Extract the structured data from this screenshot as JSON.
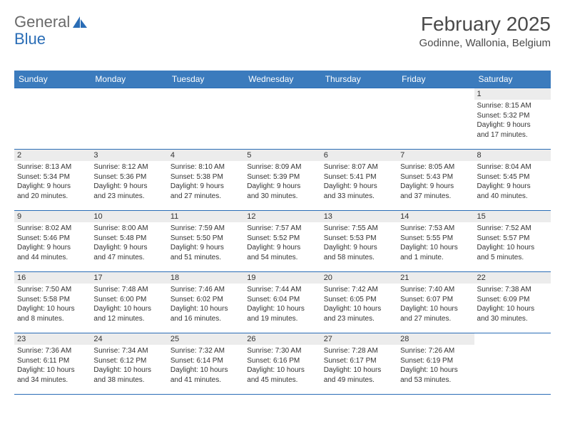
{
  "logo": {
    "word1": "General",
    "word2": "Blue"
  },
  "title": {
    "month": "February 2025",
    "location": "Godinne, Wallonia, Belgium"
  },
  "colors": {
    "header_bg": "#3b7bbd",
    "header_text": "#ffffff",
    "border": "#2a6db6",
    "daynum_bg": "#ececec",
    "text": "#333333",
    "logo_gray": "#6a6a6a",
    "logo_blue": "#2a6db6"
  },
  "weekdays": [
    "Sunday",
    "Monday",
    "Tuesday",
    "Wednesday",
    "Thursday",
    "Friday",
    "Saturday"
  ],
  "weeks": [
    [
      null,
      null,
      null,
      null,
      null,
      null,
      {
        "n": "1",
        "sunrise": "8:15 AM",
        "sunset": "5:32 PM",
        "dl1": "Daylight: 9 hours",
        "dl2": "and 17 minutes."
      }
    ],
    [
      {
        "n": "2",
        "sunrise": "8:13 AM",
        "sunset": "5:34 PM",
        "dl1": "Daylight: 9 hours",
        "dl2": "and 20 minutes."
      },
      {
        "n": "3",
        "sunrise": "8:12 AM",
        "sunset": "5:36 PM",
        "dl1": "Daylight: 9 hours",
        "dl2": "and 23 minutes."
      },
      {
        "n": "4",
        "sunrise": "8:10 AM",
        "sunset": "5:38 PM",
        "dl1": "Daylight: 9 hours",
        "dl2": "and 27 minutes."
      },
      {
        "n": "5",
        "sunrise": "8:09 AM",
        "sunset": "5:39 PM",
        "dl1": "Daylight: 9 hours",
        "dl2": "and 30 minutes."
      },
      {
        "n": "6",
        "sunrise": "8:07 AM",
        "sunset": "5:41 PM",
        "dl1": "Daylight: 9 hours",
        "dl2": "and 33 minutes."
      },
      {
        "n": "7",
        "sunrise": "8:05 AM",
        "sunset": "5:43 PM",
        "dl1": "Daylight: 9 hours",
        "dl2": "and 37 minutes."
      },
      {
        "n": "8",
        "sunrise": "8:04 AM",
        "sunset": "5:45 PM",
        "dl1": "Daylight: 9 hours",
        "dl2": "and 40 minutes."
      }
    ],
    [
      {
        "n": "9",
        "sunrise": "8:02 AM",
        "sunset": "5:46 PM",
        "dl1": "Daylight: 9 hours",
        "dl2": "and 44 minutes."
      },
      {
        "n": "10",
        "sunrise": "8:00 AM",
        "sunset": "5:48 PM",
        "dl1": "Daylight: 9 hours",
        "dl2": "and 47 minutes."
      },
      {
        "n": "11",
        "sunrise": "7:59 AM",
        "sunset": "5:50 PM",
        "dl1": "Daylight: 9 hours",
        "dl2": "and 51 minutes."
      },
      {
        "n": "12",
        "sunrise": "7:57 AM",
        "sunset": "5:52 PM",
        "dl1": "Daylight: 9 hours",
        "dl2": "and 54 minutes."
      },
      {
        "n": "13",
        "sunrise": "7:55 AM",
        "sunset": "5:53 PM",
        "dl1": "Daylight: 9 hours",
        "dl2": "and 58 minutes."
      },
      {
        "n": "14",
        "sunrise": "7:53 AM",
        "sunset": "5:55 PM",
        "dl1": "Daylight: 10 hours",
        "dl2": "and 1 minute."
      },
      {
        "n": "15",
        "sunrise": "7:52 AM",
        "sunset": "5:57 PM",
        "dl1": "Daylight: 10 hours",
        "dl2": "and 5 minutes."
      }
    ],
    [
      {
        "n": "16",
        "sunrise": "7:50 AM",
        "sunset": "5:58 PM",
        "dl1": "Daylight: 10 hours",
        "dl2": "and 8 minutes."
      },
      {
        "n": "17",
        "sunrise": "7:48 AM",
        "sunset": "6:00 PM",
        "dl1": "Daylight: 10 hours",
        "dl2": "and 12 minutes."
      },
      {
        "n": "18",
        "sunrise": "7:46 AM",
        "sunset": "6:02 PM",
        "dl1": "Daylight: 10 hours",
        "dl2": "and 16 minutes."
      },
      {
        "n": "19",
        "sunrise": "7:44 AM",
        "sunset": "6:04 PM",
        "dl1": "Daylight: 10 hours",
        "dl2": "and 19 minutes."
      },
      {
        "n": "20",
        "sunrise": "7:42 AM",
        "sunset": "6:05 PM",
        "dl1": "Daylight: 10 hours",
        "dl2": "and 23 minutes."
      },
      {
        "n": "21",
        "sunrise": "7:40 AM",
        "sunset": "6:07 PM",
        "dl1": "Daylight: 10 hours",
        "dl2": "and 27 minutes."
      },
      {
        "n": "22",
        "sunrise": "7:38 AM",
        "sunset": "6:09 PM",
        "dl1": "Daylight: 10 hours",
        "dl2": "and 30 minutes."
      }
    ],
    [
      {
        "n": "23",
        "sunrise": "7:36 AM",
        "sunset": "6:11 PM",
        "dl1": "Daylight: 10 hours",
        "dl2": "and 34 minutes."
      },
      {
        "n": "24",
        "sunrise": "7:34 AM",
        "sunset": "6:12 PM",
        "dl1": "Daylight: 10 hours",
        "dl2": "and 38 minutes."
      },
      {
        "n": "25",
        "sunrise": "7:32 AM",
        "sunset": "6:14 PM",
        "dl1": "Daylight: 10 hours",
        "dl2": "and 41 minutes."
      },
      {
        "n": "26",
        "sunrise": "7:30 AM",
        "sunset": "6:16 PM",
        "dl1": "Daylight: 10 hours",
        "dl2": "and 45 minutes."
      },
      {
        "n": "27",
        "sunrise": "7:28 AM",
        "sunset": "6:17 PM",
        "dl1": "Daylight: 10 hours",
        "dl2": "and 49 minutes."
      },
      {
        "n": "28",
        "sunrise": "7:26 AM",
        "sunset": "6:19 PM",
        "dl1": "Daylight: 10 hours",
        "dl2": "and 53 minutes."
      },
      null
    ]
  ],
  "labels": {
    "sunrise": "Sunrise: ",
    "sunset": "Sunset: "
  }
}
